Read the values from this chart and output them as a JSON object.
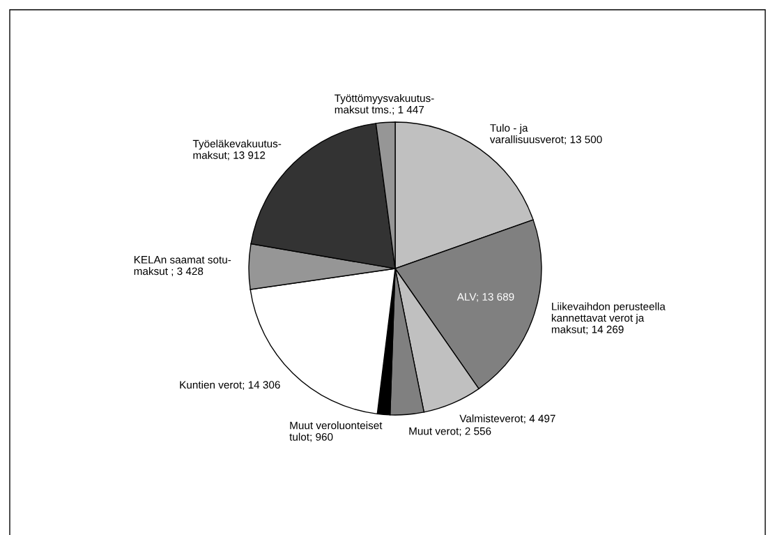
{
  "chart_data": {
    "type": "pie",
    "categories": [
      "Tulo - ja\nvarallisuusverot; 13 500",
      "Liikevaihdon perusteella\nkannettavat verot ja\nmaksut; 14 269",
      "Valmisteverot; 4 497",
      "Muut verot; 2 556",
      "Muut veroluonteiset\ntulot; 960",
      "Kuntien verot; 14 306",
      "KELAn saamat sotu-\nmaksut ; 3 428",
      "Työeläkevakuutus-\nmaksut; 13 912",
      "Työttömyysvakuutus-\nmaksut tms.; 1 447"
    ],
    "values": [
      13500,
      14269,
      4497,
      2556,
      960,
      14306,
      3428,
      13912,
      1447
    ],
    "colors": [
      "#c0c0c0",
      "#808080",
      "#c0c0c0",
      "#808080",
      "#000000",
      "#ffffff",
      "#969696",
      "#333333",
      "#969696"
    ],
    "annotations": [
      {
        "text": "ALV; 13 689",
        "x": "Liikevaihdon perusteella\nkannettavat verot ja\nmaksut; 14 269"
      }
    ],
    "legend": false
  }
}
